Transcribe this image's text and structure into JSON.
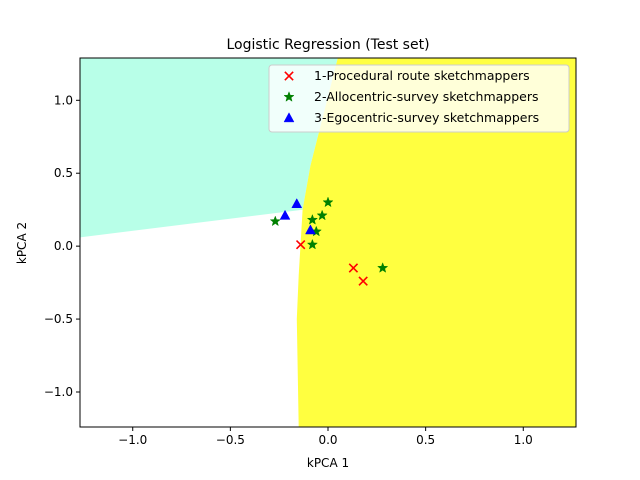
{
  "chart_data": {
    "type": "scatter",
    "title": "Logistic Regression (Test set)",
    "xlabel": "kPCA 1",
    "ylabel": "kPCA 2",
    "xlim": [
      -1.27,
      1.27
    ],
    "ylim": [
      -1.24,
      1.29
    ],
    "xticks": [
      -1.0,
      -0.5,
      0.0,
      0.5,
      1.0
    ],
    "xtick_labels": [
      "−1.0",
      "−0.5",
      "0.0",
      "0.5",
      "1.0"
    ],
    "yticks": [
      1.0,
      0.5,
      0.0,
      -0.5,
      -1.0
    ],
    "ytick_labels": [
      "1.0",
      "0.5",
      "0.0",
      "−0.5",
      "−1.0"
    ],
    "grid": false,
    "legend_position": "top-right",
    "regions": [
      {
        "class": "2-Allocentric-survey sketchmappers",
        "color": "#a0ffe0",
        "polygon": [
          [
            -1.27,
            1.29
          ],
          [
            0.05,
            1.29
          ],
          [
            -0.09,
            0.55
          ],
          [
            -0.13,
            0.25
          ],
          [
            -1.27,
            0.06
          ]
        ]
      },
      {
        "class": "3-Egocentric-survey sketchmappers",
        "color": "#ffff00",
        "polygon": [
          [
            0.05,
            1.29
          ],
          [
            1.27,
            1.29
          ],
          [
            1.27,
            -1.24
          ],
          [
            -0.15,
            -1.24
          ],
          [
            -0.16,
            -0.5
          ],
          [
            -0.15,
            -0.2
          ],
          [
            -0.13,
            0.25
          ],
          [
            -0.09,
            0.55
          ]
        ]
      }
    ],
    "series": [
      {
        "name": "1-Procedural route sketchmappers",
        "marker": "x",
        "color": "#ff0000",
        "x": [
          -0.14,
          0.13,
          0.18
        ],
        "y": [
          0.01,
          -0.15,
          -0.24
        ]
      },
      {
        "name": "2-Allocentric-survey sketchmappers",
        "marker": "star",
        "color": "#008000",
        "x": [
          -0.27,
          -0.08,
          -0.06,
          -0.03,
          0.0,
          -0.08,
          0.28
        ],
        "y": [
          0.17,
          0.18,
          0.1,
          0.21,
          0.3,
          0.01,
          -0.15
        ]
      },
      {
        "name": "3-Egocentric-survey sketchmappers",
        "marker": "triangle",
        "color": "#0000ff",
        "x": [
          -0.22,
          -0.16,
          -0.09
        ],
        "y": [
          0.21,
          0.29,
          0.11
        ]
      }
    ]
  }
}
